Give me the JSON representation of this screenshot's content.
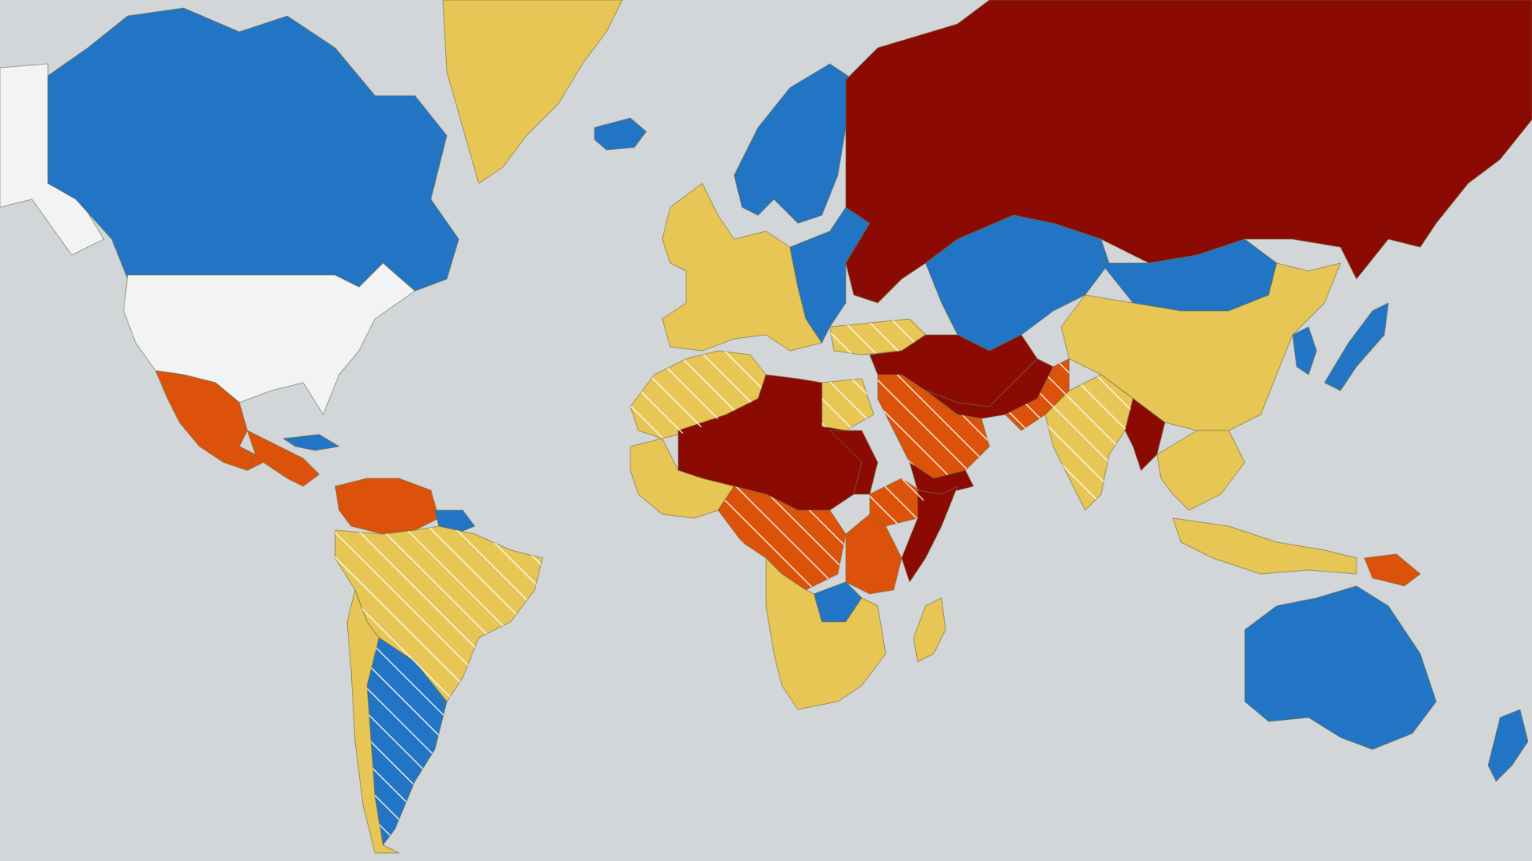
{
  "map": {
    "levels": {
      "level_1": {
        "color": "#2274c4"
      },
      "level_2": {
        "color": "#e7c655"
      },
      "level_3": {
        "color": "#dc520b"
      },
      "level_4": {
        "color": "#8b0a04"
      },
      "home_country": {
        "color": "#f2f3f4"
      }
    },
    "ocean_color": "#d3d6d8",
    "border_color": "#6b6b3a",
    "hatch": {
      "pattern": "diagonal-white-stripes",
      "meaning": "partial-region-advisory"
    },
    "regions": [
      {
        "name": "canada",
        "level": "level_1"
      },
      {
        "name": "greenland",
        "level": "level_2"
      },
      {
        "name": "iceland",
        "level": "level_1"
      },
      {
        "name": "usa",
        "level": "home_country"
      },
      {
        "name": "alaska",
        "level": "home_country"
      },
      {
        "name": "mexico",
        "level": "level_3"
      },
      {
        "name": "central-america",
        "level": "level_3"
      },
      {
        "name": "cuba",
        "level": "level_1"
      },
      {
        "name": "venezuela-colombia",
        "level": "level_3"
      },
      {
        "name": "guianas",
        "level": "level_1"
      },
      {
        "name": "brazil-andes",
        "level": "level_2",
        "hatched": true
      },
      {
        "name": "argentina-uruguay",
        "level": "level_1",
        "hatched": true
      },
      {
        "name": "chile",
        "level": "level_2"
      },
      {
        "name": "western-europe",
        "level": "level_2"
      },
      {
        "name": "scandinavia",
        "level": "level_1"
      },
      {
        "name": "central-eastern-europe",
        "level": "level_1"
      },
      {
        "name": "russia",
        "level": "level_4"
      },
      {
        "name": "turkey",
        "level": "level_2",
        "hatched": true
      },
      {
        "name": "north-africa",
        "level": "level_2",
        "hatched": true
      },
      {
        "name": "sahel",
        "level": "level_4"
      },
      {
        "name": "egypt",
        "level": "level_2",
        "hatched": true
      },
      {
        "name": "west-africa",
        "level": "level_2"
      },
      {
        "name": "nigeria-central-africa",
        "level": "level_3",
        "hatched": true
      },
      {
        "name": "sudan",
        "level": "level_4"
      },
      {
        "name": "ethiopia",
        "level": "level_3",
        "hatched": true
      },
      {
        "name": "somalia",
        "level": "level_4"
      },
      {
        "name": "east-africa",
        "level": "level_3"
      },
      {
        "name": "zambia",
        "level": "level_1"
      },
      {
        "name": "southern-africa",
        "level": "level_2"
      },
      {
        "name": "madagascar",
        "level": "level_2"
      },
      {
        "name": "middle-east",
        "level": "level_4"
      },
      {
        "name": "saudi-arabia",
        "level": "level_3",
        "hatched": true
      },
      {
        "name": "yemen",
        "level": "level_4"
      },
      {
        "name": "kazakhstan-central-asia",
        "level": "level_1"
      },
      {
        "name": "mongolia",
        "level": "level_1"
      },
      {
        "name": "china",
        "level": "level_2"
      },
      {
        "name": "pakistan",
        "level": "level_3",
        "hatched": true
      },
      {
        "name": "afghanistan-iran",
        "level": "level_4"
      },
      {
        "name": "india",
        "level": "level_2",
        "hatched": true
      },
      {
        "name": "myanmar",
        "level": "level_4"
      },
      {
        "name": "southeast-asia",
        "level": "level_2"
      },
      {
        "name": "japan",
        "level": "level_1"
      },
      {
        "name": "korea",
        "level": "level_1"
      },
      {
        "name": "indonesia",
        "level": "level_2"
      },
      {
        "name": "papua-new-guinea",
        "level": "level_3"
      },
      {
        "name": "australia",
        "level": "level_1"
      },
      {
        "name": "new-zealand",
        "level": "level_1"
      }
    ]
  }
}
